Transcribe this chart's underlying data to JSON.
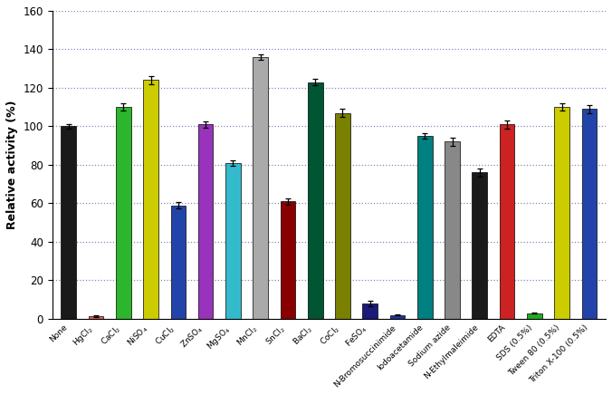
{
  "categories": [
    "None",
    "HgCl$_2$",
    "CaCl$_2$",
    "NiSO$_4$",
    "CuCl$_2$",
    "ZnSO$_4$",
    "MgSO$_4$",
    "MnCl$_2$",
    "SnCl$_2$",
    "BaCl$_2$",
    "CoCl$_2$",
    "FeSO$_4$",
    "N-Bromosuccinimide",
    "Iodoacetamide",
    "Sodium azide",
    "N-Ethylmaleimide",
    "EDTA",
    "SDS (0.5%)",
    "Tween 80 (0.5%)",
    "Triton X-100 (0.5%)"
  ],
  "values": [
    100,
    1.5,
    110,
    124,
    59,
    101,
    81,
    136,
    61,
    123,
    107,
    8,
    2,
    95,
    92,
    76,
    101,
    3,
    110,
    109
  ],
  "errors": [
    1.2,
    0.4,
    2.0,
    2.0,
    1.5,
    1.5,
    1.5,
    1.5,
    1.5,
    1.8,
    2.0,
    1.5,
    0.3,
    1.5,
    2.0,
    2.0,
    2.0,
    0.4,
    2.0,
    2.0
  ],
  "colors": [
    "#1a1a1a",
    "#e06060",
    "#2db52d",
    "#cccc00",
    "#2244aa",
    "#9933bb",
    "#33bbcc",
    "#aaaaaa",
    "#880000",
    "#005533",
    "#7a8000",
    "#1a1a7a",
    "#223399",
    "#008080",
    "#888888",
    "#1a1a1a",
    "#cc2222",
    "#22aa22",
    "#cccc00",
    "#2244aa"
  ],
  "ylabel": "Relative activity (%)",
  "ylim": [
    0,
    160
  ],
  "yticks": [
    0,
    20,
    40,
    60,
    80,
    100,
    120,
    140,
    160
  ],
  "grid_color": "#8888bb",
  "bar_width": 0.55,
  "figsize": [
    6.76,
    4.36
  ],
  "dpi": 100
}
